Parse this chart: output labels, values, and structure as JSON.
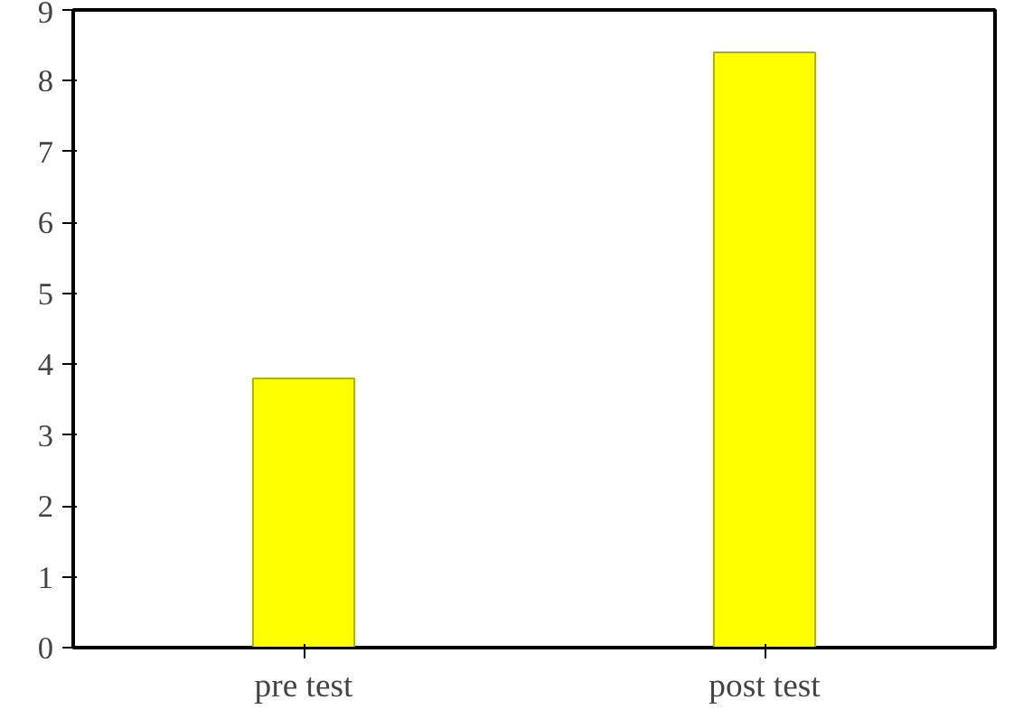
{
  "chart_data": {
    "type": "bar",
    "categories": [
      "pre test",
      "post test"
    ],
    "values": [
      3.8,
      8.4
    ],
    "color": "#ffff00",
    "ylim": [
      0,
      9
    ],
    "yticks": [
      0,
      1,
      2,
      3,
      4,
      5,
      6,
      7,
      8,
      9
    ],
    "grid": false
  }
}
